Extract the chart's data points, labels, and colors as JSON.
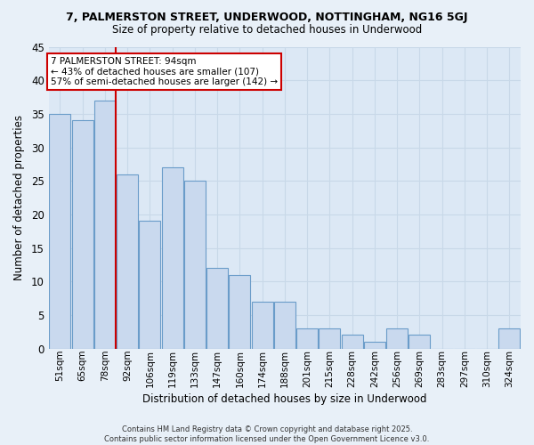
{
  "title": "7, PALMERSTON STREET, UNDERWOOD, NOTTINGHAM, NG16 5GJ",
  "subtitle": "Size of property relative to detached houses in Underwood",
  "xlabel": "Distribution of detached houses by size in Underwood",
  "ylabel": "Number of detached properties",
  "categories": [
    "51sqm",
    "65sqm",
    "78sqm",
    "92sqm",
    "106sqm",
    "119sqm",
    "133sqm",
    "147sqm",
    "160sqm",
    "174sqm",
    "188sqm",
    "201sqm",
    "215sqm",
    "228sqm",
    "242sqm",
    "256sqm",
    "269sqm",
    "283sqm",
    "297sqm",
    "310sqm",
    "324sqm"
  ],
  "values": [
    35,
    34,
    37,
    26,
    19,
    27,
    25,
    12,
    11,
    7,
    7,
    3,
    3,
    2,
    1,
    3,
    2,
    0,
    0,
    0,
    3
  ],
  "bar_color": "#c9d9ee",
  "bar_edge_color": "#6a9cc9",
  "vline_x_index": 2,
  "vline_color": "#cc0000",
  "annotation_text": "7 PALMERSTON STREET: 94sqm\n← 43% of detached houses are smaller (107)\n57% of semi-detached houses are larger (142) →",
  "annotation_box_color": "#ffffff",
  "annotation_box_edge": "#cc0000",
  "ylim": [
    0,
    45
  ],
  "yticks": [
    0,
    5,
    10,
    15,
    20,
    25,
    30,
    35,
    40,
    45
  ],
  "grid_color": "#c8d8e8",
  "bg_color": "#dce8f5",
  "fig_bg_color": "#e8f0f8",
  "footer_line1": "Contains HM Land Registry data © Crown copyright and database right 2025.",
  "footer_line2": "Contains public sector information licensed under the Open Government Licence v3.0."
}
